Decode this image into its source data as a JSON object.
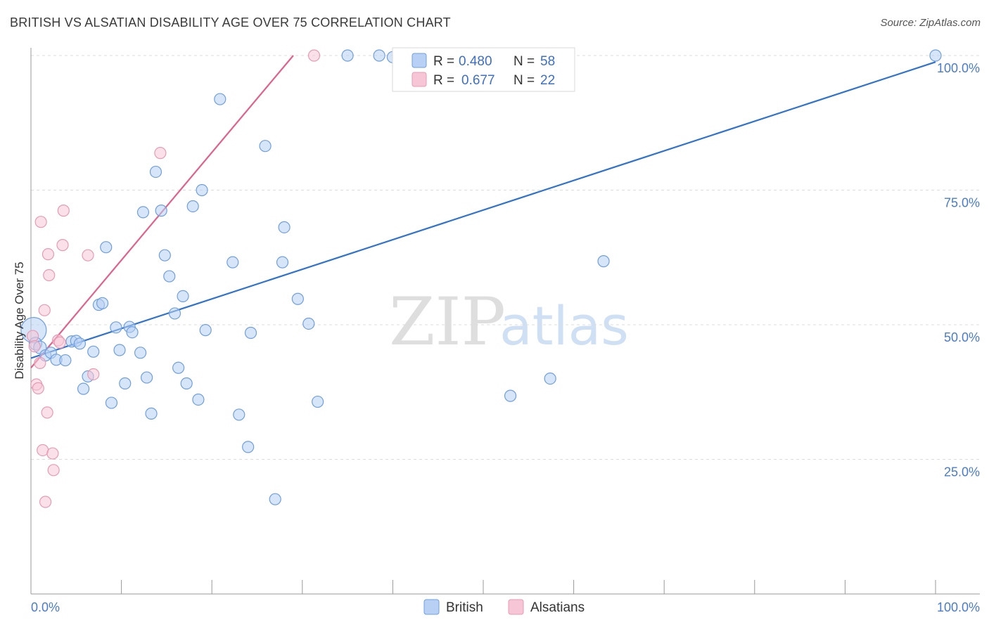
{
  "header": {
    "title": "BRITISH VS ALSATIAN DISABILITY AGE OVER 75 CORRELATION CHART",
    "source": "Source: ZipAtlas.com"
  },
  "watermark": {
    "zip": "ZIP",
    "atlas": "atlas"
  },
  "chart_data": {
    "type": "scatter",
    "title": "BRITISH VS ALSATIAN DISABILITY AGE OVER 75 CORRELATION CHART",
    "xlabel": "",
    "ylabel": "Disability Age Over 75",
    "xlim": [
      0,
      100
    ],
    "ylim": [
      0,
      100
    ],
    "x_tick_labels": {
      "min": "0.0%",
      "max": "100.0%"
    },
    "y_ticks": [
      {
        "value": 25,
        "label": "25.0%"
      },
      {
        "value": 50,
        "label": "50.0%"
      },
      {
        "value": 75,
        "label": "75.0%"
      },
      {
        "value": 100,
        "label": "100.0%"
      }
    ],
    "grid": true,
    "legend_position": "top-center",
    "stats": [
      {
        "series": "British",
        "r_label": "R =",
        "r": "0.480",
        "n_label": "N =",
        "n": "58"
      },
      {
        "series": "Alsatians",
        "r_label": "R =",
        "r": "0.677",
        "n_label": "N =",
        "n": "22"
      }
    ],
    "series": [
      {
        "name": "British",
        "color": "#6f9fe0",
        "fill": "#b7d0f3",
        "trend_color": "#2f72d0",
        "trend": {
          "x0": 0,
          "y0": 43.8,
          "x1": 100,
          "y1": 98.8
        },
        "points": [
          [
            0.3,
            49.0,
            18
          ],
          [
            0.5,
            46.5,
            9
          ],
          [
            1.0,
            45.8,
            9
          ],
          [
            1.6,
            44.3,
            8
          ],
          [
            2.2,
            44.8,
            8
          ],
          [
            2.8,
            43.5,
            8
          ],
          [
            3.8,
            43.4,
            8
          ],
          [
            4.5,
            46.9,
            8
          ],
          [
            5.0,
            47.0,
            8
          ],
          [
            5.4,
            46.5,
            8
          ],
          [
            5.8,
            38.1,
            8
          ],
          [
            6.3,
            40.4,
            8
          ],
          [
            6.9,
            45.0,
            8
          ],
          [
            7.5,
            53.7,
            8
          ],
          [
            7.9,
            54.0,
            8
          ],
          [
            8.3,
            64.4,
            8
          ],
          [
            8.9,
            35.5,
            8
          ],
          [
            9.4,
            49.5,
            8
          ],
          [
            9.8,
            45.3,
            8
          ],
          [
            10.4,
            39.1,
            8
          ],
          [
            10.9,
            49.6,
            8
          ],
          [
            11.2,
            48.6,
            8
          ],
          [
            12.1,
            44.8,
            8
          ],
          [
            12.4,
            70.9,
            8
          ],
          [
            12.8,
            40.2,
            8
          ],
          [
            13.3,
            33.5,
            8
          ],
          [
            13.8,
            78.4,
            8
          ],
          [
            14.4,
            71.2,
            8
          ],
          [
            14.8,
            62.9,
            8
          ],
          [
            15.3,
            59.0,
            8
          ],
          [
            15.9,
            52.1,
            8
          ],
          [
            16.3,
            42.0,
            8
          ],
          [
            16.8,
            55.3,
            8
          ],
          [
            17.2,
            39.1,
            8
          ],
          [
            17.9,
            72.0,
            8
          ],
          [
            18.5,
            36.1,
            8
          ],
          [
            18.9,
            75.0,
            8
          ],
          [
            19.3,
            49.0,
            8
          ],
          [
            20.9,
            91.9,
            8
          ],
          [
            22.3,
            61.6,
            8
          ],
          [
            23.0,
            33.3,
            8
          ],
          [
            24.0,
            27.3,
            8
          ],
          [
            24.3,
            48.5,
            8
          ],
          [
            25.9,
            83.2,
            8
          ],
          [
            27.0,
            17.6,
            8
          ],
          [
            27.8,
            61.6,
            8
          ],
          [
            28.0,
            68.1,
            8
          ],
          [
            29.5,
            54.8,
            8
          ],
          [
            30.7,
            50.2,
            8
          ],
          [
            31.7,
            35.7,
            8
          ],
          [
            35.0,
            100.0,
            8
          ],
          [
            38.5,
            100.0,
            8
          ],
          [
            40.0,
            99.7,
            8
          ],
          [
            40.8,
            99.9,
            8
          ],
          [
            53.0,
            36.8,
            8
          ],
          [
            57.4,
            40.0,
            8
          ],
          [
            63.3,
            61.8,
            8
          ],
          [
            100.0,
            100.0,
            8
          ]
        ]
      },
      {
        "name": "Alsatians",
        "color": "#e79bb4",
        "fill": "#f6c6d6",
        "trend_color": "#e0628b",
        "trend": {
          "x0": 0,
          "y0": 42.0,
          "x1": 29,
          "y1": 100.0
        },
        "points": [
          [
            0.2,
            47.9,
            8
          ],
          [
            0.4,
            46.0,
            8
          ],
          [
            0.6,
            38.9,
            8
          ],
          [
            0.8,
            38.2,
            8
          ],
          [
            1.0,
            42.9,
            8
          ],
          [
            1.1,
            69.1,
            8
          ],
          [
            1.3,
            26.7,
            8
          ],
          [
            1.5,
            52.7,
            8
          ],
          [
            1.6,
            17.1,
            8
          ],
          [
            1.8,
            33.7,
            8
          ],
          [
            1.9,
            63.1,
            8
          ],
          [
            2.0,
            59.2,
            8
          ],
          [
            2.4,
            26.1,
            8
          ],
          [
            2.5,
            23.0,
            8
          ],
          [
            3.0,
            47.1,
            8
          ],
          [
            3.2,
            46.7,
            8
          ],
          [
            3.5,
            64.8,
            8
          ],
          [
            3.6,
            71.2,
            8
          ],
          [
            6.3,
            62.9,
            8
          ],
          [
            6.9,
            40.8,
            8
          ],
          [
            14.3,
            81.9,
            8
          ],
          [
            31.3,
            100.0,
            8
          ]
        ]
      }
    ]
  }
}
